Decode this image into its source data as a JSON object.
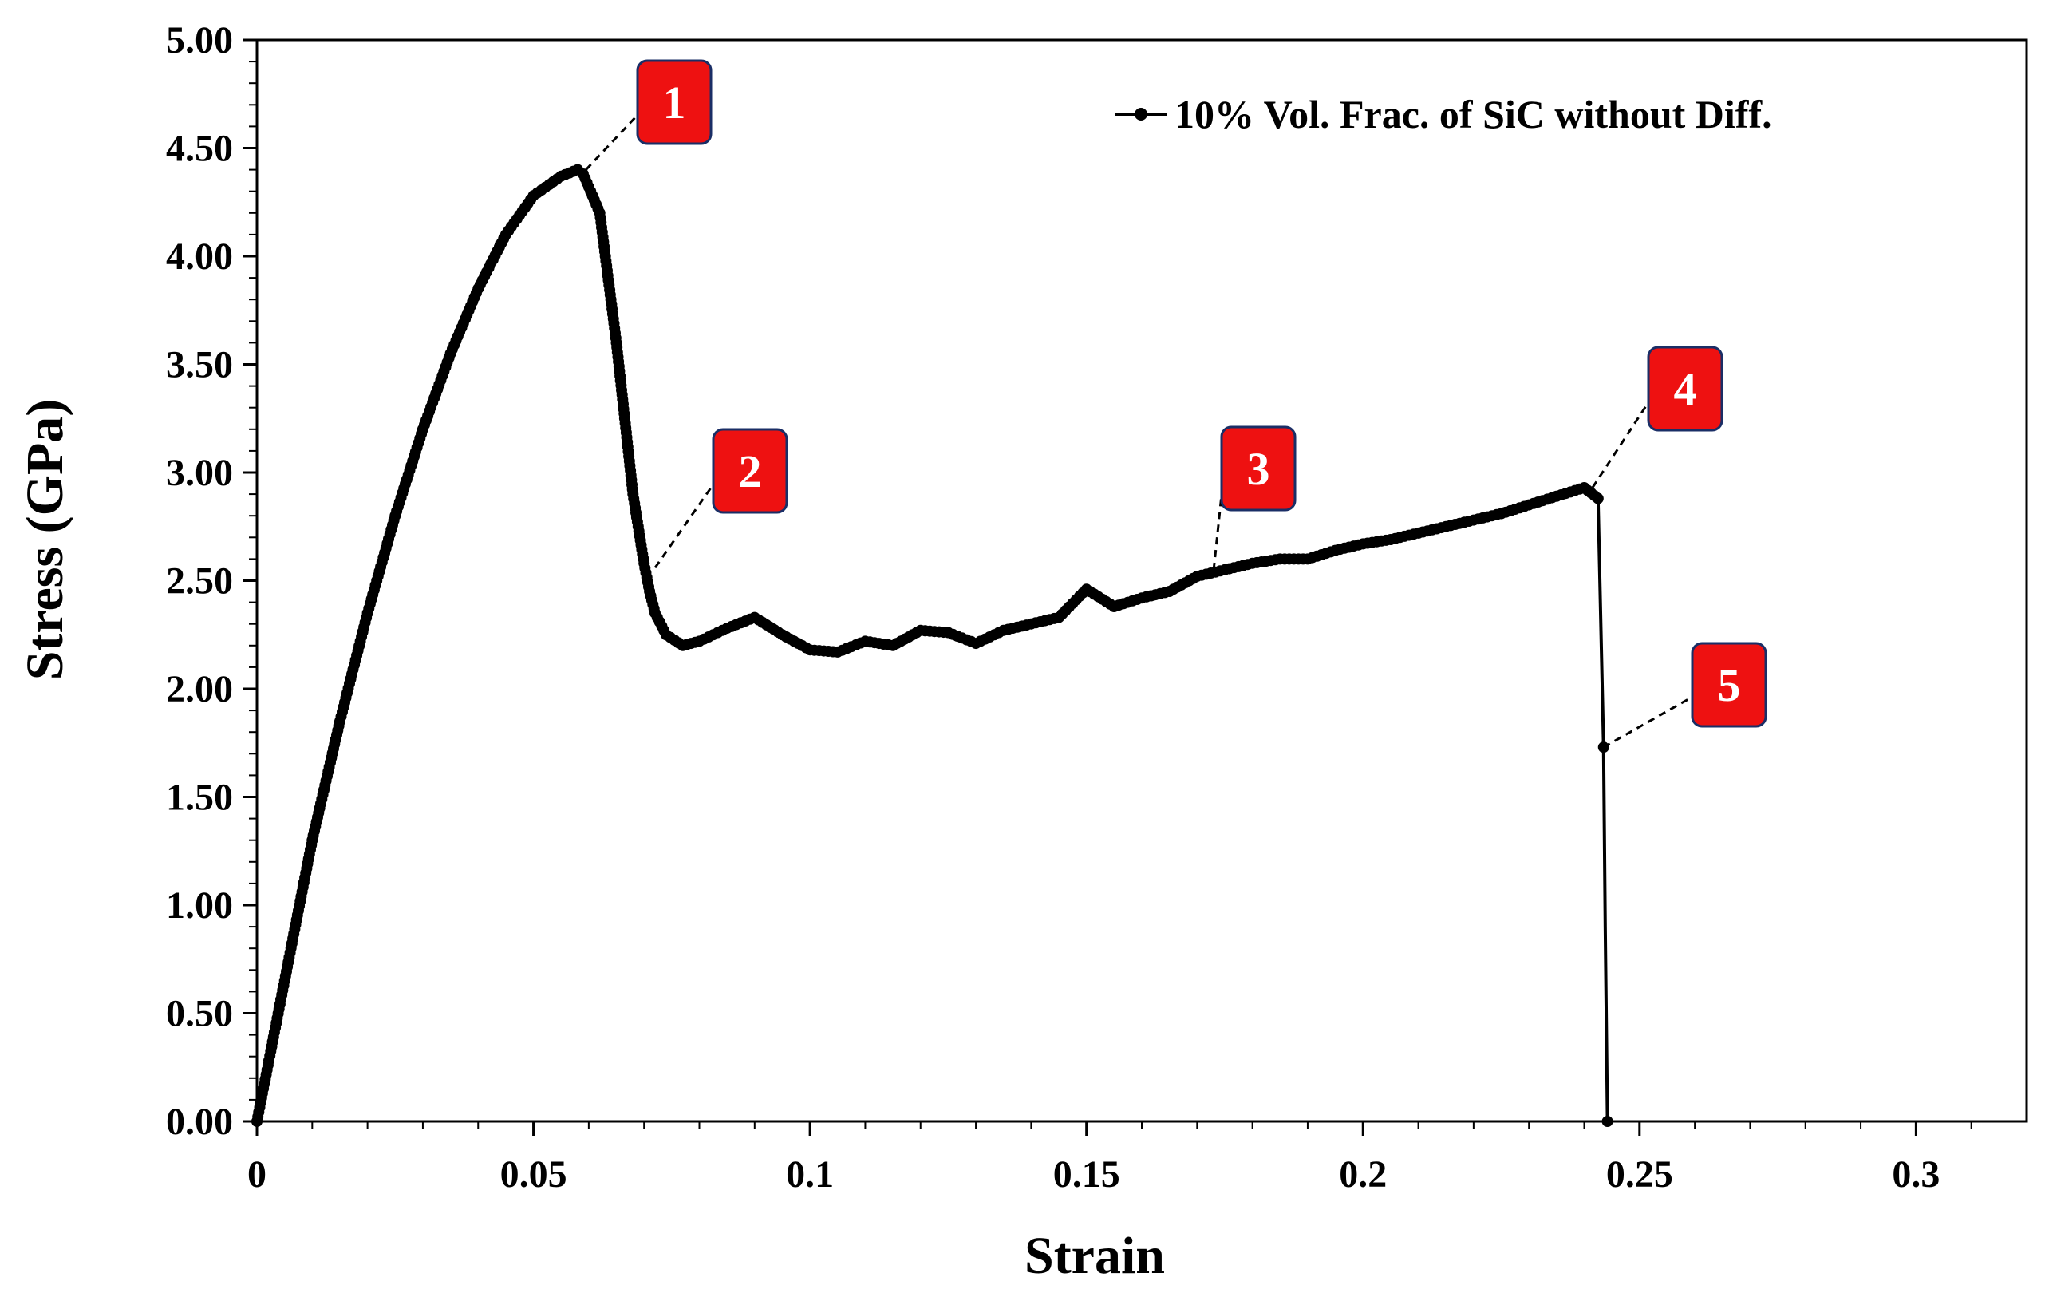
{
  "chart_data": {
    "type": "scatter",
    "title": "",
    "xlabel": "Strain",
    "ylabel": "Stress (GPa)",
    "xlim": [
      0,
      0.32
    ],
    "ylim": [
      0,
      5
    ],
    "x_ticks": [
      0,
      0.05,
      0.1,
      0.15,
      0.2,
      0.25,
      0.3
    ],
    "x_tick_labels": [
      "0",
      "0.05",
      "0.1",
      "0.15",
      "0.2",
      "0.25",
      "0.3"
    ],
    "y_ticks": [
      0,
      0.5,
      1,
      1.5,
      2,
      2.5,
      3,
      3.5,
      4,
      4.5,
      5
    ],
    "y_tick_labels": [
      "0.00",
      "0.50",
      "1.00",
      "1.50",
      "2.00",
      "2.50",
      "3.00",
      "3.50",
      "4.00",
      "4.50",
      "5.00"
    ],
    "legend": {
      "position": "top-right",
      "label": "10% Vol. Frac. of SiC without Diff."
    },
    "series": [
      {
        "name": "10% Vol. Frac. of SiC without Diff.",
        "color": "#000000",
        "x": [
          0,
          0.005,
          0.01,
          0.015,
          0.02,
          0.025,
          0.03,
          0.035,
          0.04,
          0.045,
          0.05,
          0.055,
          0.058,
          0.059,
          0.062,
          0.065,
          0.068,
          0.07,
          0.071,
          0.072,
          0.074,
          0.077,
          0.08,
          0.085,
          0.09,
          0.095,
          0.1,
          0.105,
          0.11,
          0.115,
          0.12,
          0.125,
          0.13,
          0.135,
          0.14,
          0.145,
          0.15,
          0.155,
          0.16,
          0.165,
          0.17,
          0.175,
          0.18,
          0.185,
          0.19,
          0.195,
          0.2,
          0.205,
          0.21,
          0.215,
          0.22,
          0.225,
          0.23,
          0.235,
          0.24,
          0.2425,
          0.2435,
          0.2438,
          0.2442
        ],
        "y": [
          0,
          0.65,
          1.3,
          1.85,
          2.35,
          2.8,
          3.2,
          3.55,
          3.85,
          4.1,
          4.28,
          4.37,
          4.4,
          4.38,
          4.2,
          3.6,
          2.9,
          2.58,
          2.45,
          2.35,
          2.25,
          2.2,
          2.22,
          2.28,
          2.33,
          2.25,
          2.18,
          2.17,
          2.22,
          2.2,
          2.27,
          2.26,
          2.21,
          2.27,
          2.3,
          2.33,
          2.46,
          2.38,
          2.42,
          2.45,
          2.52,
          2.55,
          2.58,
          2.6,
          2.6,
          2.64,
          2.67,
          2.69,
          2.72,
          2.75,
          2.78,
          2.81,
          2.85,
          2.89,
          2.93,
          2.88,
          1.73,
          0.9,
          0
        ]
      }
    ],
    "annotations": [
      {
        "label": "1",
        "x": 0.0595,
        "y": 4.4
      },
      {
        "label": "2",
        "x": 0.072,
        "y": 2.56
      },
      {
        "label": "3",
        "x": 0.173,
        "y": 2.55
      },
      {
        "label": "4",
        "x": 0.2415,
        "y": 2.93
      },
      {
        "label": "5",
        "x": 0.2435,
        "y": 1.73
      }
    ],
    "grid": false
  },
  "colors": {
    "callout_fill": "#ee1111",
    "callout_border": "#1a2e66",
    "line": "#000000"
  }
}
